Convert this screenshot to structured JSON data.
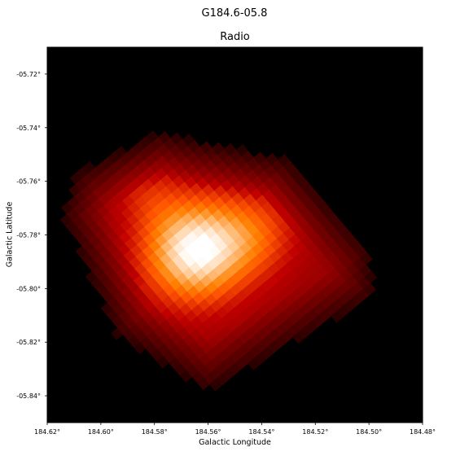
{
  "figure": {
    "suptitle": "G184.6-05.8"
  },
  "chart_data": {
    "type": "heatmap",
    "title": "Radio",
    "xlabel": "Galactic Longitude",
    "ylabel": "Galactic Latitude",
    "colormap": "gist_heat",
    "background": "#000000",
    "xlim": [
      184.62,
      184.48
    ],
    "ylim": [
      -5.85,
      -5.71
    ],
    "xticks": [
      184.62,
      184.6,
      184.58,
      184.56,
      184.54,
      184.52,
      184.5,
      184.48
    ],
    "xtick_labels": [
      "184.62°",
      "184.60°",
      "184.58°",
      "184.56°",
      "184.54°",
      "184.52°",
      "184.50°",
      "184.48°"
    ],
    "yticks": [
      -5.72,
      -5.74,
      -5.76,
      -5.78,
      -5.8,
      -5.82,
      -5.84
    ],
    "ytick_labels": [
      "-05.72°",
      "-05.74°",
      "-05.76°",
      "-05.78°",
      "-05.80°",
      "-05.82°",
      "-05.84°"
    ],
    "emission": {
      "outline_l": [
        184.609,
        184.578,
        184.565,
        184.53,
        184.5,
        184.498,
        184.56,
        184.594,
        184.614
      ],
      "outline_b": [
        -5.757,
        -5.742,
        -5.745,
        -5.752,
        -5.786,
        -5.803,
        -5.838,
        -5.817,
        -5.773
      ],
      "peak_l": 184.565,
      "peak_b": -5.786,
      "secondary_peak_l": 184.542,
      "secondary_peak_b": -5.78,
      "bright_lobe_l": 184.583,
      "bright_lobe_b": -5.764
    }
  }
}
